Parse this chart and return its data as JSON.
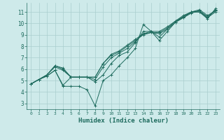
{
  "xlabel": "Humidex (Indice chaleur)",
  "bg_color": "#ceeaea",
  "grid_color": "#aacece",
  "line_color": "#1e6b5e",
  "xlim": [
    -0.5,
    23.5
  ],
  "ylim": [
    2.5,
    11.8
  ],
  "xticks": [
    0,
    1,
    2,
    3,
    4,
    5,
    6,
    7,
    8,
    9,
    10,
    11,
    12,
    13,
    14,
    15,
    16,
    17,
    18,
    19,
    20,
    21,
    22,
    23
  ],
  "yticks": [
    3,
    4,
    5,
    6,
    7,
    8,
    9,
    10,
    11
  ],
  "series": [
    [
      4.7,
      5.1,
      5.4,
      5.9,
      4.5,
      4.5,
      4.5,
      4.2,
      2.8,
      5.0,
      5.5,
      6.3,
      7.0,
      7.8,
      9.9,
      9.3,
      8.5,
      9.3,
      10.1,
      10.5,
      11.0,
      11.0,
      10.4,
      11.3
    ],
    [
      4.7,
      5.1,
      5.4,
      5.9,
      4.6,
      5.3,
      5.3,
      5.3,
      4.9,
      5.5,
      6.5,
      7.2,
      7.5,
      8.3,
      9.3,
      9.3,
      8.8,
      9.5,
      10.1,
      10.6,
      11.0,
      11.0,
      10.5,
      11.2
    ],
    [
      4.7,
      5.1,
      5.5,
      6.3,
      6.0,
      5.3,
      5.3,
      5.3,
      5.3,
      6.5,
      7.2,
      7.5,
      8.0,
      8.5,
      9.0,
      9.2,
      9.2,
      9.6,
      10.2,
      10.6,
      11.0,
      11.1,
      10.6,
      11.1
    ],
    [
      4.7,
      5.1,
      5.5,
      6.3,
      6.1,
      5.3,
      5.3,
      5.3,
      5.3,
      6.5,
      7.3,
      7.6,
      8.1,
      8.6,
      9.1,
      9.3,
      9.3,
      9.7,
      10.2,
      10.7,
      11.0,
      11.2,
      10.7,
      11.1
    ],
    [
      4.7,
      5.1,
      5.5,
      6.2,
      5.9,
      5.3,
      5.3,
      5.3,
      5.1,
      6.2,
      7.0,
      7.4,
      7.8,
      8.4,
      9.1,
      9.2,
      9.1,
      9.5,
      10.1,
      10.5,
      10.9,
      11.1,
      10.5,
      11.0
    ]
  ]
}
